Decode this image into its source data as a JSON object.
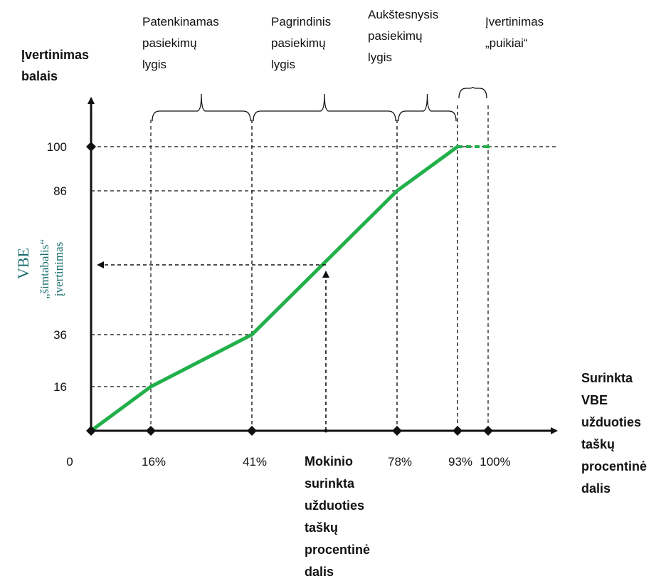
{
  "chart_data": {
    "type": "line",
    "x": [
      0,
      16,
      41,
      78,
      93,
      100
    ],
    "y": [
      0,
      16,
      36,
      86,
      100,
      100
    ],
    "xlim": [
      0,
      100
    ],
    "ylim": [
      0,
      100
    ],
    "line_color": "#22b04b",
    "grid": false,
    "x_axis_label": [
      "Surinkta",
      "VBE",
      "užduoties",
      "taškų",
      "procentinė",
      "dalis"
    ],
    "y_axis_title": [
      "Įvertinimas",
      "balais"
    ],
    "y_axis_label_main": "VBE",
    "y_axis_label_sub": [
      "„šimtabalis“",
      "įvertinimas"
    ],
    "x_ticks": [
      {
        "value": 0,
        "label": "0",
        "marker": false
      },
      {
        "value": 16,
        "label": "16%",
        "marker": true
      },
      {
        "value": 41,
        "label": "41%",
        "marker": true
      },
      {
        "value": 78,
        "label": "78%",
        "marker": true
      },
      {
        "value": 93,
        "label": "93%",
        "marker": true
      },
      {
        "value": 100,
        "label": "100%",
        "marker": true
      }
    ],
    "y_ticks": [
      {
        "value": 16,
        "label": "16",
        "marker": false
      },
      {
        "value": 36,
        "label": "36",
        "marker": false
      },
      {
        "value": 86,
        "label": "86",
        "marker": false
      },
      {
        "value": 100,
        "label": "100",
        "marker": true
      }
    ],
    "bands": [
      {
        "from": 16,
        "to": 41,
        "lines": [
          "Patenkinamas",
          "pasiekimų",
          "lygis"
        ]
      },
      {
        "from": 41,
        "to": 78,
        "lines": [
          "Pagrindinis",
          "pasiekimų",
          "lygis"
        ]
      },
      {
        "from": 78,
        "to": 93,
        "lines": [
          "Aukštesnysis",
          "pasiekimų",
          "lygis"
        ]
      },
      {
        "from": 93,
        "to": 100,
        "lines": [
          "Įvertinimas",
          "„puikiai“"
        ]
      }
    ],
    "example": {
      "x": 60,
      "x_label": [
        "Mokinio",
        "surinkta",
        "užduoties",
        "taškų",
        "procentinė",
        "dalis"
      ]
    }
  }
}
